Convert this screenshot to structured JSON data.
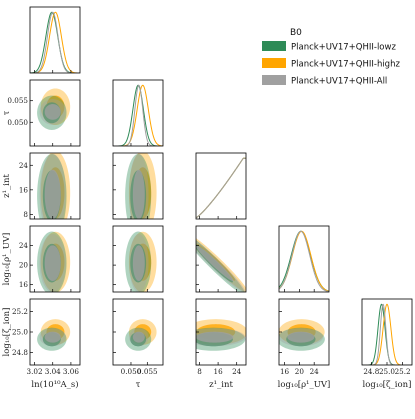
{
  "chart_data": {
    "type": "corner",
    "legend": {
      "title": "B0",
      "placement": "top-right",
      "entries": [
        {
          "name": "Planck+UV17+QHII-lowz",
          "color": "#2e8b57"
        },
        {
          "name": "Planck+UV17+QHII-highz",
          "color": "#ffa500"
        },
        {
          "name": "Planck+UV17+QHII-All",
          "color": "#a0a0a0"
        }
      ]
    },
    "parameters": [
      {
        "key": "lnAs",
        "label": "ln(10¹⁰A_s)",
        "range": [
          3.015,
          3.07
        ],
        "ticks": [
          3.02,
          3.04,
          3.06
        ],
        "tick_labels": [
          "3.02",
          "3.04",
          "3.06"
        ]
      },
      {
        "key": "tau",
        "label": "τ",
        "range": [
          0.0445,
          0.0598
        ],
        "ticks": [
          0.05,
          0.055
        ],
        "tick_labels": [
          "0.050",
          "0.055"
        ]
      },
      {
        "key": "z1int",
        "label": "z¹_int",
        "range": [
          6.5,
          28.0
        ],
        "ticks": [
          8,
          16,
          24
        ],
        "tick_labels": [
          "8",
          "16",
          "24"
        ]
      },
      {
        "key": "logrho",
        "label": "log₁₀[ρ¹_UV]",
        "range": [
          14.5,
          28.0
        ],
        "ticks": [
          16,
          20,
          24
        ],
        "tick_labels": [
          "16",
          "20",
          "24"
        ]
      },
      {
        "key": "logzeta",
        "label": "log₁₀[ζ_ion]",
        "range": [
          24.68,
          25.32
        ],
        "ticks": [
          24.8,
          25.0,
          25.2
        ],
        "tick_labels": [
          "24.8",
          "25.0",
          "25.2"
        ]
      }
    ],
    "series": [
      {
        "name": "Planck+UV17+QHII-lowz",
        "color": "#2e8b57",
        "mean": {
          "lnAs": 3.039,
          "tau": 0.0522,
          "z1int": 14.0,
          "logrho": 20.4,
          "logzeta": 24.93
        },
        "sigma": {
          "lnAs": 0.0065,
          "tau": 0.0016,
          "z1int": 5.5,
          "logrho": 2.6,
          "logzeta": 0.045
        }
      },
      {
        "name": "Planck+UV17+QHII-highz",
        "color": "#ffa500",
        "mean": {
          "lnAs": 3.043,
          "tau": 0.0536,
          "z1int": 15.0,
          "logrho": 20.6,
          "logzeta": 25.0
        },
        "sigma": {
          "lnAs": 0.0065,
          "tau": 0.0017,
          "z1int": 5.5,
          "logrho": 2.5,
          "logzeta": 0.05
        }
      },
      {
        "name": "Planck+UV17+QHII-All",
        "color": "#a0a0a0",
        "mean": {
          "lnAs": 3.04,
          "tau": 0.0524,
          "z1int": 14.5,
          "logrho": 20.4,
          "logzeta": 24.95
        },
        "sigma": {
          "lnAs": 0.0058,
          "tau": 0.0012,
          "z1int": 5.3,
          "logrho": 2.4,
          "logzeta": 0.035
        }
      }
    ],
    "correlations": {
      "z1int-logrho": -0.97
    }
  }
}
